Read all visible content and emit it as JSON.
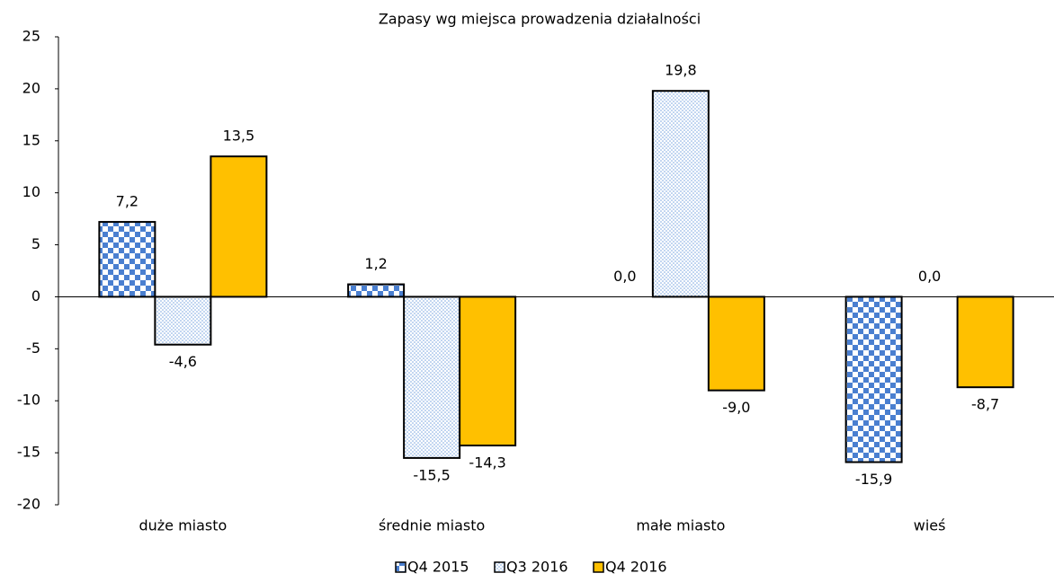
{
  "chart_data": {
    "type": "bar",
    "title": "Zapasy wg miejsca prowadzenia działalności",
    "categories": [
      "duże miasto",
      "średnie miasto",
      "małe miasto",
      "wieś"
    ],
    "series": [
      {
        "name": "Q4 2015",
        "color": "#4a7fd0",
        "pattern": "checker",
        "values": [
          7.2,
          1.2,
          0.0,
          -15.9
        ],
        "value_labels": [
          "7,2",
          "1,2",
          "0,0",
          "-15,9"
        ]
      },
      {
        "name": "Q3 2016",
        "color": "#7aa6e0",
        "pattern": "dots",
        "values": [
          -4.6,
          -15.5,
          19.8,
          0.0
        ],
        "value_labels": [
          "-4,6",
          "-15,5",
          "19,8",
          "0,0"
        ]
      },
      {
        "name": "Q4 2016",
        "color": "#ffc000",
        "pattern": "solid",
        "values": [
          13.5,
          -14.3,
          -9.0,
          -8.7
        ],
        "value_labels": [
          "13,5",
          "-14,3",
          "-9,0",
          "-8,7"
        ]
      }
    ],
    "ylim": [
      -20,
      25
    ],
    "yticks": [
      -20,
      -15,
      -10,
      -5,
      0,
      5,
      10,
      15,
      20,
      25
    ],
    "grid": false,
    "legend": "bottom"
  }
}
